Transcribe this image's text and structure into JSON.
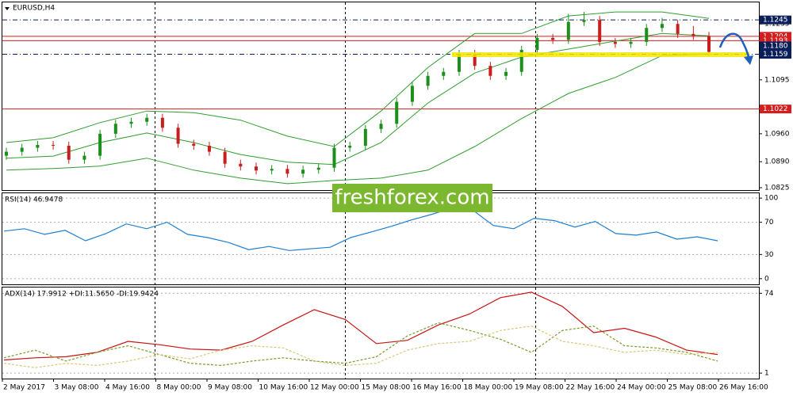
{
  "chart_data": [
    {
      "type": "candlestick",
      "title": "EURUSD,H4",
      "open": [
        1.0905,
        1.0915,
        1.0925,
        1.0932,
        1.093,
        1.0895,
        1.0905,
        1.096,
        1.0985,
        1.099,
        1.1,
        1.0975,
        1.0935,
        1.093,
        1.0915,
        1.0885,
        1.0878,
        1.0868,
        1.0872,
        1.086,
        1.087,
        1.0875,
        1.0925,
        1.093,
        1.0972,
        1.0985,
        1.104,
        1.108,
        1.1105,
        1.1115,
        1.116,
        1.113,
        1.1105,
        1.1115,
        1.117,
        1.12,
        1.1195,
        1.124,
        1.1245,
        1.119,
        1.1185,
        1.119,
        1.1225,
        1.1235,
        1.121,
        1.1205
      ],
      "high": [
        1.0925,
        1.0935,
        1.0942,
        1.0942,
        1.094,
        1.0915,
        1.097,
        1.0995,
        1.1,
        1.101,
        1.101,
        1.0985,
        1.0945,
        1.094,
        1.0925,
        1.0895,
        1.0888,
        1.0882,
        1.0882,
        1.088,
        1.0885,
        1.0935,
        1.094,
        1.0982,
        1.0995,
        1.105,
        1.109,
        1.1115,
        1.1125,
        1.117,
        1.117,
        1.114,
        1.1125,
        1.118,
        1.121,
        1.121,
        1.126,
        1.1265,
        1.1255,
        1.12,
        1.12,
        1.1235,
        1.125,
        1.1245,
        1.123,
        1.1215
      ],
      "low": [
        1.0895,
        1.0905,
        1.0915,
        1.092,
        1.0885,
        1.0885,
        1.0895,
        1.095,
        1.0975,
        1.098,
        1.0965,
        1.0925,
        1.092,
        1.0905,
        1.0875,
        1.0868,
        1.0858,
        1.0858,
        1.085,
        1.085,
        1.086,
        1.0865,
        1.0915,
        1.092,
        1.0962,
        1.0975,
        1.103,
        1.107,
        1.1095,
        1.1105,
        1.112,
        1.1095,
        1.1095,
        1.1105,
        1.116,
        1.1185,
        1.1185,
        1.123,
        1.118,
        1.1175,
        1.1175,
        1.118,
        1.1215,
        1.12,
        1.1195,
        1.1155
      ],
      "close": [
        1.0915,
        1.0925,
        1.0932,
        1.093,
        1.0895,
        1.0905,
        1.096,
        1.0985,
        1.099,
        1.1,
        1.0975,
        1.0935,
        1.093,
        1.0915,
        1.0885,
        1.0878,
        1.0868,
        1.0872,
        1.086,
        1.087,
        1.0875,
        1.0925,
        1.093,
        1.0972,
        1.0985,
        1.104,
        1.108,
        1.1105,
        1.1115,
        1.116,
        1.113,
        1.1105,
        1.1115,
        1.117,
        1.12,
        1.1195,
        1.124,
        1.1245,
        1.119,
        1.1185,
        1.119,
        1.1225,
        1.1235,
        1.121,
        1.1205,
        1.1165
      ],
      "up_color": "#1a8f1a",
      "down_color": "#c81e1e",
      "bands": {
        "color": "#2e9e2e",
        "upper": [
          1.0938,
          1.095,
          1.0988,
          1.1017,
          1.1013,
          1.0994,
          1.0954,
          1.0928,
          1.1017,
          1.1126,
          1.1211,
          1.1211,
          1.1255,
          1.1265,
          1.1265,
          1.1249
        ],
        "middle": [
          1.0899,
          1.0904,
          1.0938,
          1.0962,
          1.0938,
          1.0908,
          1.0889,
          1.0883,
          1.0938,
          1.1037,
          1.1112,
          1.1152,
          1.1172,
          1.1192,
          1.1211,
          1.1205
        ],
        "lower": [
          1.0869,
          1.0873,
          1.0879,
          1.0899,
          1.0869,
          1.0849,
          1.0835,
          1.0843,
          1.0849,
          1.0869,
          1.0928,
          1.0998,
          1.1061,
          1.1101,
          1.1156,
          1.116
        ]
      },
      "ylim": [
        1.0819,
        1.1285
      ],
      "yticks": [
        1.1235,
        1.1095,
        {
          "value": 1.096,
          "label": "1.0960"
        },
        {
          "value": 1.089,
          "label": "1.0890"
        },
        1.0825
      ],
      "levels": [
        {
          "value": 1.1245,
          "color": "#0a1e5a",
          "style": "dashdot"
        },
        {
          "value": 1.1204,
          "color": "#d21e1e",
          "style": "solid"
        },
        {
          "value": 1.1193,
          "color": "#d21e1e",
          "style": "solid"
        },
        {
          "value": 1.118,
          "label": "1.1180",
          "color": "#0a1e5a",
          "style": "none"
        },
        {
          "value": 1.1159,
          "color": "#0a1e5a",
          "style": "dashdot"
        },
        {
          "value": 1.1022,
          "color": "#d21e1e",
          "style": "solid"
        }
      ]
    },
    {
      "type": "line",
      "title": "RSI(14) 46.9478",
      "series": [
        {
          "color": "#1e7fd0",
          "values": [
            59,
            62,
            55,
            60,
            47,
            56,
            68,
            62,
            70,
            55,
            51,
            45,
            36,
            40,
            35,
            37,
            39,
            51,
            58,
            65,
            73,
            80,
            88,
            85,
            66,
            62,
            75,
            72,
            64,
            71,
            56,
            54,
            58,
            49,
            52,
            47
          ]
        }
      ],
      "ylim": [
        -8,
        107
      ],
      "yticks": [
        100,
        70,
        30,
        0
      ]
    },
    {
      "type": "line",
      "title": "ADX(14) 17.9912 +DI:11.5650 -DI:19.9424",
      "series": [
        {
          "color": "#c81414",
          "dashed": false,
          "values": [
            13,
            15,
            16,
            20,
            30,
            27,
            23,
            22,
            30,
            45,
            59,
            50,
            28,
            31,
            45,
            55,
            70,
            75,
            62,
            38,
            42,
            34,
            22,
            18
          ]
        },
        {
          "color": "#7a9a2a",
          "dashed": true,
          "values": [
            15,
            22,
            12,
            20,
            26,
            18,
            10,
            8,
            12,
            15,
            12,
            10,
            16,
            35,
            47,
            40,
            32,
            20,
            40,
            44,
            26,
            24,
            20,
            12
          ]
        },
        {
          "color": "#d8c878",
          "dashed": true,
          "values": [
            10,
            6,
            10,
            8,
            12,
            18,
            14,
            22,
            26,
            24,
            12,
            8,
            10,
            22,
            28,
            30,
            40,
            44,
            30,
            26,
            20,
            22,
            18,
            20
          ]
        }
      ],
      "ylim": [
        -4,
        80
      ],
      "yticks": [
        74,
        1
      ]
    }
  ],
  "time_labels": [
    "2 May 2017",
    "3 May 08:00",
    "4 May 16:00",
    "8 May 00:00",
    "9 May 08:00",
    "10 May 16:00",
    "12 May 00:00",
    "15 May 08:00",
    "16 May 16:00",
    "18 May 00:00",
    "19 May 08:00",
    "22 May 16:00",
    "24 May 00:00",
    "25 May 08:00",
    "26 May 16:00"
  ],
  "watermark": "freshforex.com"
}
